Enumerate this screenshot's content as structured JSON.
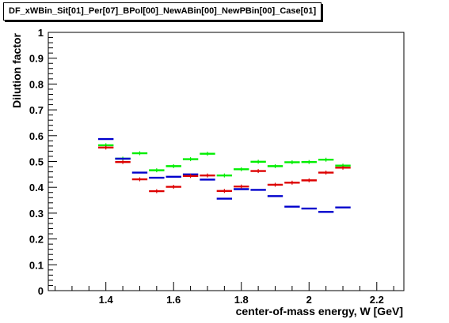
{
  "title": "DF_xWBin_Sit[01]_Per[07]_BPol[00]_NewABin[00]_NewPBin[00]_Case[01]",
  "chart_data": {
    "type": "scatter",
    "xlabel": "center-of-mass energy, W [GeV]",
    "ylabel": "Dilution factor",
    "xlim": [
      1.23,
      2.28
    ],
    "ylim": [
      0,
      1
    ],
    "xticks": [
      "1.4",
      "1.6",
      "1.8",
      "2",
      "2.2"
    ],
    "xtick_values": [
      1.4,
      1.6,
      1.8,
      2.0,
      2.2
    ],
    "yticks": [
      "0",
      "0.1",
      "0.2",
      "0.3",
      "0.4",
      "0.5",
      "0.6",
      "0.7",
      "0.8",
      "0.9",
      "1"
    ],
    "ytick_values": [
      0,
      0.1,
      0.2,
      0.3,
      0.4,
      0.5,
      0.6,
      0.7,
      0.8,
      0.9,
      1.0
    ],
    "bin_width": 0.05,
    "x": [
      1.4,
      1.45,
      1.5,
      1.55,
      1.6,
      1.65,
      1.7,
      1.75,
      1.8,
      1.85,
      1.9,
      1.95,
      2.0,
      2.05,
      2.1
    ],
    "series": [
      {
        "color": "#00ee00",
        "values": [
          0.563,
          0.511,
          0.532,
          0.466,
          0.482,
          0.509,
          0.53,
          0.446,
          0.47,
          0.499,
          0.482,
          0.497,
          0.498,
          0.507,
          0.484
        ]
      },
      {
        "color": "#0000cc",
        "values": [
          0.587,
          0.511,
          0.457,
          0.437,
          0.441,
          0.45,
          0.43,
          0.356,
          0.393,
          0.39,
          0.366,
          0.325,
          0.318,
          0.305,
          0.322
        ]
      },
      {
        "color": "#dd0000",
        "values": [
          0.554,
          0.498,
          0.431,
          0.385,
          0.402,
          0.444,
          0.446,
          0.386,
          0.403,
          0.463,
          0.41,
          0.418,
          0.427,
          0.457,
          0.476
        ]
      }
    ]
  }
}
